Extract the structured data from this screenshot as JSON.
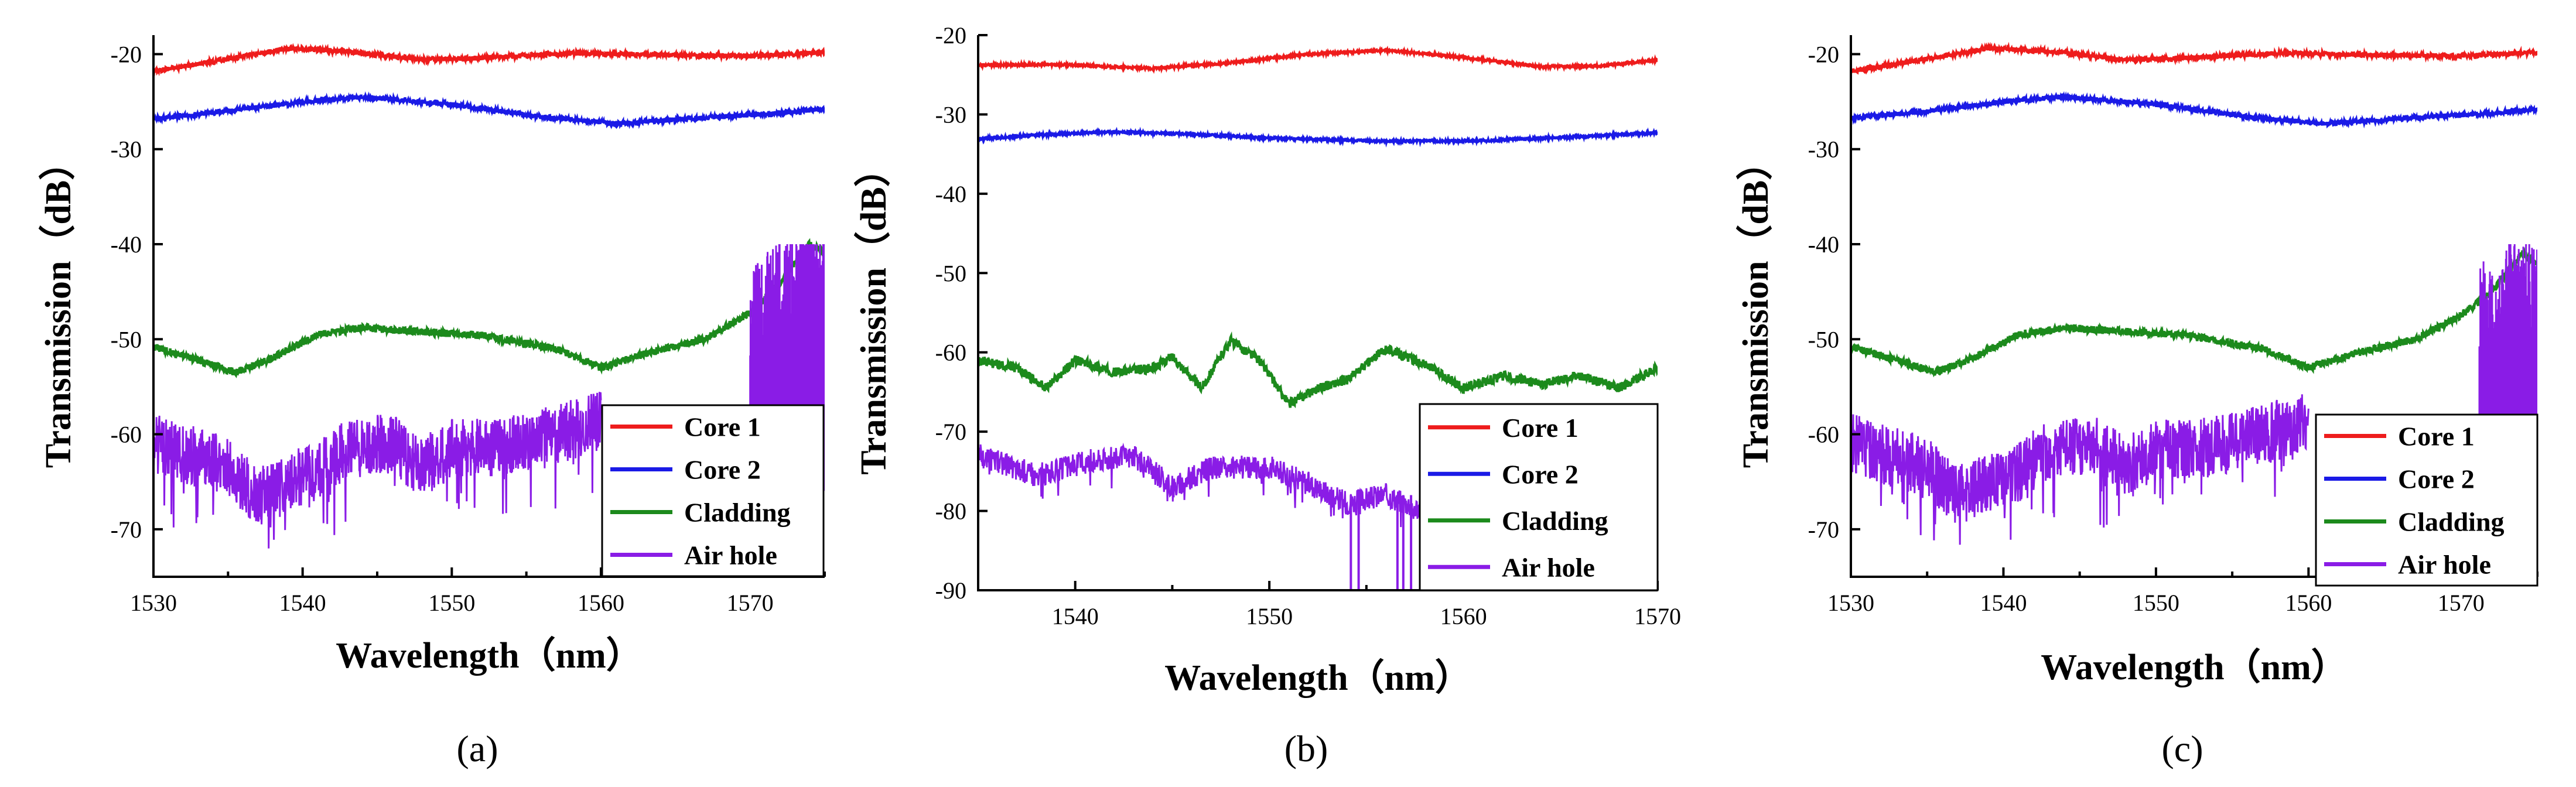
{
  "chart_data": [
    {
      "type": "line",
      "panel_label": "(a)",
      "xlabel": "Wavelength（nm）",
      "ylabel": "Transmission（dB）",
      "xlim": [
        1530,
        1575
      ],
      "ylim": [
        -75,
        -18
      ],
      "xticks": [
        1530,
        1540,
        1550,
        1560,
        1570
      ],
      "yticks": [
        -20,
        -30,
        -40,
        -50,
        -60,
        -70
      ],
      "legend_position": "bottom-right",
      "series": [
        {
          "name": "Core 1",
          "color": "#ee1c1c",
          "noise": 0.25,
          "points": [
            [
              1530,
              -21.8
            ],
            [
              1535,
              -20.5
            ],
            [
              1539,
              -19.4
            ],
            [
              1543,
              -19.7
            ],
            [
              1548,
              -20.6
            ],
            [
              1552,
              -20.4
            ],
            [
              1558,
              -19.9
            ],
            [
              1565,
              -20.1
            ],
            [
              1570,
              -20.2
            ],
            [
              1575,
              -19.8
            ]
          ]
        },
        {
          "name": "Core 2",
          "color": "#1a1ae6",
          "noise": 0.25,
          "points": [
            [
              1530,
              -26.8
            ],
            [
              1535,
              -26.0
            ],
            [
              1540,
              -25.0
            ],
            [
              1544,
              -24.5
            ],
            [
              1550,
              -25.3
            ],
            [
              1556,
              -26.6
            ],
            [
              1561,
              -27.3
            ],
            [
              1566,
              -26.8
            ],
            [
              1572,
              -26.2
            ],
            [
              1575,
              -25.8
            ]
          ]
        },
        {
          "name": "Cladding",
          "color": "#1c8a1c",
          "noise": 0.4,
          "points": [
            [
              1530,
              -50.8
            ],
            [
              1533,
              -52.2
            ],
            [
              1535.5,
              -53.5
            ],
            [
              1538,
              -52.0
            ],
            [
              1541,
              -49.5
            ],
            [
              1544,
              -48.8
            ],
            [
              1548,
              -49.2
            ],
            [
              1552,
              -49.6
            ],
            [
              1557,
              -51.0
            ],
            [
              1560,
              -53.0
            ],
            [
              1563,
              -51.5
            ],
            [
              1567,
              -50.0
            ],
            [
              1570,
              -47.2
            ],
            [
              1572,
              -44.0
            ],
            [
              1574,
              -40.0
            ],
            [
              1575,
              -41.0
            ]
          ]
        },
        {
          "name": "Air hole",
          "color": "#8a1ce6",
          "noise": 3.2,
          "points": [
            [
              1530,
              -61.0
            ],
            [
              1533,
              -62.5
            ],
            [
              1535,
              -63.5
            ],
            [
              1537,
              -66.5
            ],
            [
              1539,
              -65.0
            ],
            [
              1541,
              -64.0
            ],
            [
              1543,
              -61.5
            ],
            [
              1546,
              -61.0
            ],
            [
              1548,
              -63.5
            ],
            [
              1550,
              -61.5
            ],
            [
              1553,
              -61.5
            ],
            [
              1556,
              -60.5
            ],
            [
              1560,
              -58.5
            ]
          ]
        }
      ]
    },
    {
      "type": "line",
      "panel_label": "(b)",
      "xlabel": "Wavelength（nm）",
      "ylabel": "Transmission（dB）",
      "xlim": [
        1535,
        1570
      ],
      "ylim": [
        -90,
        -20
      ],
      "xticks": [
        1540,
        1550,
        1560,
        1570
      ],
      "yticks": [
        -20,
        -30,
        -40,
        -50,
        -60,
        -70,
        -80,
        -90
      ],
      "legend_position": "bottom-right",
      "series": [
        {
          "name": "Core 1",
          "color": "#ee1c1c",
          "noise": 0.15,
          "points": [
            [
              1535,
              -23.8
            ],
            [
              1539,
              -23.7
            ],
            [
              1544,
              -24.2
            ],
            [
              1548,
              -23.5
            ],
            [
              1552,
              -22.4
            ],
            [
              1556,
              -21.9
            ],
            [
              1560,
              -22.8
            ],
            [
              1564,
              -24.0
            ],
            [
              1567,
              -23.9
            ],
            [
              1570,
              -23.1
            ]
          ]
        },
        {
          "name": "Core 2",
          "color": "#1a1ae6",
          "noise": 0.15,
          "points": [
            [
              1535,
              -33.1
            ],
            [
              1538,
              -32.6
            ],
            [
              1542,
              -32.2
            ],
            [
              1546,
              -32.5
            ],
            [
              1550,
              -33.0
            ],
            [
              1556,
              -33.4
            ],
            [
              1561,
              -33.3
            ],
            [
              1566,
              -32.8
            ],
            [
              1570,
              -32.3
            ]
          ]
        },
        {
          "name": "Cladding",
          "color": "#1c8a1c",
          "noise": 0.6,
          "points": [
            [
              1535,
              -61.0
            ],
            [
              1537,
              -62.0
            ],
            [
              1538.5,
              -64.5
            ],
            [
              1540,
              -61.0
            ],
            [
              1542,
              -62.5
            ],
            [
              1544,
              -62.0
            ],
            [
              1545,
              -60.5
            ],
            [
              1546.5,
              -64.5
            ],
            [
              1548,
              -58.5
            ],
            [
              1549.5,
              -61.0
            ],
            [
              1551,
              -66.5
            ],
            [
              1552.5,
              -64.5
            ],
            [
              1554,
              -63.5
            ],
            [
              1556,
              -59.5
            ],
            [
              1558,
              -61.5
            ],
            [
              1560,
              -64.5
            ],
            [
              1562,
              -63.0
            ],
            [
              1564,
              -64.0
            ],
            [
              1566,
              -63.0
            ],
            [
              1568,
              -64.5
            ],
            [
              1570,
              -62.0
            ]
          ]
        },
        {
          "name": "Air hole",
          "color": "#8a1ce6",
          "noise": 1.5,
          "points": [
            [
              1535,
              -73.0
            ],
            [
              1538,
              -75.5
            ],
            [
              1541,
              -73.5
            ],
            [
              1543,
              -73.0
            ],
            [
              1545,
              -77.0
            ],
            [
              1547,
              -74.5
            ],
            [
              1550,
              -74.5
            ],
            [
              1552,
              -76.5
            ],
            [
              1554,
              -79.0
            ],
            [
              1556,
              -78.0
            ],
            [
              1558,
              -80.0
            ]
          ]
        }
      ]
    },
    {
      "type": "line",
      "panel_label": "(c)",
      "xlabel": "Wavelength（nm）",
      "ylabel": "Transmission（dB）",
      "xlim": [
        1530,
        1575
      ],
      "ylim": [
        -75,
        -18
      ],
      "xticks": [
        1530,
        1540,
        1550,
        1560,
        1570
      ],
      "yticks": [
        -20,
        -30,
        -40,
        -50,
        -60,
        -70
      ],
      "legend_position": "bottom-right",
      "series": [
        {
          "name": "Core 1",
          "color": "#ee1c1c",
          "noise": 0.25,
          "points": [
            [
              1530,
              -21.8
            ],
            [
              1535,
              -20.5
            ],
            [
              1539,
              -19.4
            ],
            [
              1543,
              -19.7
            ],
            [
              1548,
              -20.6
            ],
            [
              1552,
              -20.4
            ],
            [
              1558,
              -19.9
            ],
            [
              1565,
              -20.1
            ],
            [
              1570,
              -20.2
            ],
            [
              1575,
              -19.8
            ]
          ]
        },
        {
          "name": "Core 2",
          "color": "#1a1ae6",
          "noise": 0.25,
          "points": [
            [
              1530,
              -26.8
            ],
            [
              1535,
              -26.0
            ],
            [
              1540,
              -25.0
            ],
            [
              1544,
              -24.5
            ],
            [
              1550,
              -25.3
            ],
            [
              1556,
              -26.6
            ],
            [
              1561,
              -27.3
            ],
            [
              1566,
              -26.8
            ],
            [
              1572,
              -26.2
            ],
            [
              1575,
              -25.8
            ]
          ]
        },
        {
          "name": "Cladding",
          "color": "#1c8a1c",
          "noise": 0.4,
          "points": [
            [
              1530,
              -50.8
            ],
            [
              1533,
              -52.2
            ],
            [
              1535.5,
              -53.5
            ],
            [
              1538,
              -52.0
            ],
            [
              1541,
              -49.5
            ],
            [
              1544,
              -48.8
            ],
            [
              1548,
              -49.2
            ],
            [
              1552,
              -49.6
            ],
            [
              1557,
              -51.0
            ],
            [
              1560,
              -53.0
            ],
            [
              1563,
              -51.5
            ],
            [
              1567,
              -50.0
            ],
            [
              1570,
              -47.5
            ],
            [
              1572,
              -45.0
            ],
            [
              1574,
              -41.0
            ],
            [
              1575,
              -42.0
            ]
          ]
        },
        {
          "name": "Air hole",
          "color": "#8a1ce6",
          "noise": 3.2,
          "points": [
            [
              1530,
              -61.0
            ],
            [
              1533,
              -62.5
            ],
            [
              1535,
              -63.5
            ],
            [
              1537,
              -66.5
            ],
            [
              1539,
              -65.0
            ],
            [
              1541,
              -64.0
            ],
            [
              1543,
              -61.5
            ],
            [
              1546,
              -61.0
            ],
            [
              1548,
              -63.5
            ],
            [
              1550,
              -61.5
            ],
            [
              1553,
              -61.5
            ],
            [
              1556,
              -60.5
            ],
            [
              1560,
              -58.5
            ]
          ]
        }
      ]
    }
  ]
}
